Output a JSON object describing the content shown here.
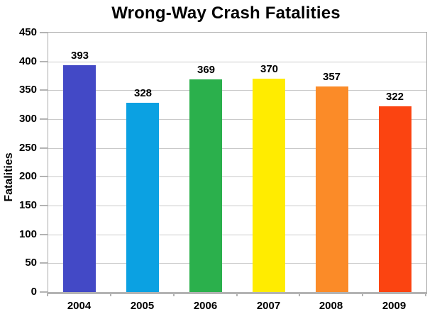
{
  "chart_data": {
    "type": "bar",
    "title": "Wrong-Way Crash Fatalities",
    "xlabel": "",
    "ylabel": "Fatalities",
    "categories": [
      "2004",
      "2005",
      "2006",
      "2007",
      "2008",
      "2009"
    ],
    "values": [
      393,
      328,
      369,
      370,
      357,
      322
    ],
    "data_labels": [
      "393",
      "328",
      "369",
      "370",
      "357",
      "322"
    ],
    "bar_colors": [
      "#4349C6",
      "#0BA1E2",
      "#2BB04C",
      "#FFEC00",
      "#FB8B28",
      "#FB4411"
    ],
    "ylim": [
      0,
      450
    ],
    "ytick_step": 50,
    "grid": true,
    "legend_position": "none",
    "colors": {
      "background": "#FFFFFF",
      "grid": "#C9C9C9",
      "axis": "#B3B3B3",
      "plot_border": "#ABABAB",
      "text": "#000000"
    }
  }
}
